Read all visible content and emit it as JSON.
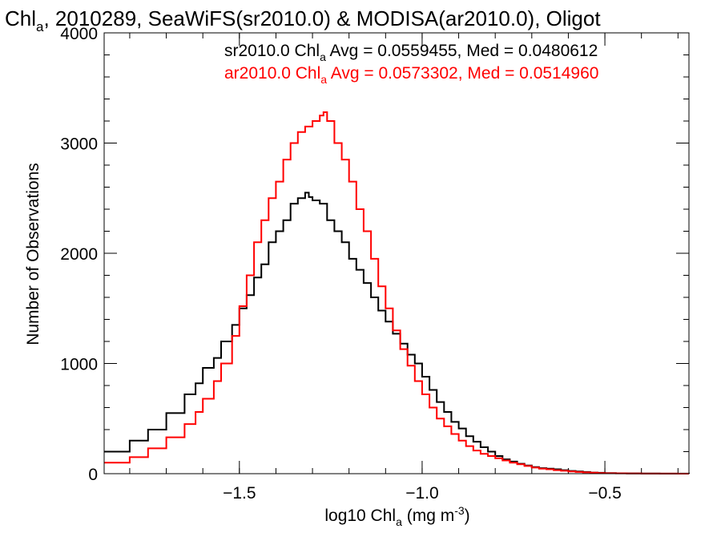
{
  "chart_data": {
    "type": "line",
    "title": {
      "prefix": "Chl",
      "sub": "a",
      "rest": ", 2010289, SeaWiFS(sr2010.0) & MODISA(ar2010.0), Oligot"
    },
    "xlabel": {
      "prefix": "log10 Chl",
      "sub": "a",
      "mid": " (mg m",
      "sup": "-3",
      "suffix": ")"
    },
    "ylabel": "Number of Observations",
    "xlim": [
      -1.87,
      -0.27
    ],
    "ylim": [
      0,
      4000
    ],
    "x_ticks": [
      {
        "value": -1.5,
        "label": "−1.5"
      },
      {
        "value": -1.0,
        "label": "−1.0"
      },
      {
        "value": -0.5,
        "label": "−0.5"
      }
    ],
    "y_ticks": [
      {
        "value": 0,
        "label": "0"
      },
      {
        "value": 1000,
        "label": "1000"
      },
      {
        "value": 2000,
        "label": "2000"
      },
      {
        "value": 3000,
        "label": "3000"
      },
      {
        "value": 4000,
        "label": "4000"
      }
    ],
    "x_minor_step": 0.1,
    "y_minor_step": 200,
    "grid": false,
    "legend_position": "top-right",
    "series": [
      {
        "legend_prefix": "sr2010.0 Chl",
        "legend_sub": "a",
        "legend_rest": " Avg = 0.0559455, Med = 0.0480612",
        "color": "#000000",
        "x": [
          -1.87,
          -1.8,
          -1.75,
          -1.7,
          -1.65,
          -1.62,
          -1.6,
          -1.57,
          -1.55,
          -1.52,
          -1.5,
          -1.48,
          -1.46,
          -1.44,
          -1.42,
          -1.4,
          -1.38,
          -1.36,
          -1.34,
          -1.32,
          -1.31,
          -1.3,
          -1.28,
          -1.26,
          -1.24,
          -1.22,
          -1.2,
          -1.18,
          -1.16,
          -1.14,
          -1.12,
          -1.1,
          -1.08,
          -1.06,
          -1.04,
          -1.02,
          -1.0,
          -0.98,
          -0.96,
          -0.94,
          -0.92,
          -0.9,
          -0.88,
          -0.86,
          -0.84,
          -0.82,
          -0.8,
          -0.78,
          -0.76,
          -0.74,
          -0.72,
          -0.7,
          -0.68,
          -0.66,
          -0.64,
          -0.62,
          -0.6,
          -0.58,
          -0.56,
          -0.54,
          -0.52,
          -0.5,
          -0.47,
          -0.44,
          -0.4,
          -0.35,
          -0.3,
          -0.27
        ],
        "y": [
          200,
          300,
          400,
          550,
          720,
          820,
          960,
          1050,
          1200,
          1350,
          1500,
          1620,
          1780,
          1900,
          2100,
          2200,
          2300,
          2450,
          2500,
          2550,
          2510,
          2480,
          2450,
          2300,
          2200,
          2100,
          1950,
          1850,
          1730,
          1600,
          1480,
          1380,
          1270,
          1180,
          1080,
          1000,
          880,
          760,
          650,
          560,
          470,
          410,
          340,
          290,
          240,
          200,
          160,
          130,
          110,
          90,
          75,
          60,
          50,
          45,
          40,
          32,
          25,
          20,
          15,
          10,
          8,
          6,
          4,
          3,
          2,
          1,
          1,
          0
        ]
      },
      {
        "legend_prefix": "ar2010.0 Chl",
        "legend_sub": "a",
        "legend_rest": " Avg = 0.0573302, Med = 0.0514960",
        "color": "#ff0000",
        "x": [
          -1.87,
          -1.8,
          -1.75,
          -1.7,
          -1.65,
          -1.62,
          -1.6,
          -1.57,
          -1.55,
          -1.52,
          -1.5,
          -1.48,
          -1.46,
          -1.44,
          -1.42,
          -1.4,
          -1.38,
          -1.36,
          -1.34,
          -1.32,
          -1.3,
          -1.28,
          -1.27,
          -1.26,
          -1.24,
          -1.22,
          -1.2,
          -1.18,
          -1.16,
          -1.14,
          -1.12,
          -1.1,
          -1.08,
          -1.06,
          -1.04,
          -1.02,
          -1.0,
          -0.98,
          -0.96,
          -0.94,
          -0.92,
          -0.9,
          -0.88,
          -0.86,
          -0.84,
          -0.82,
          -0.8,
          -0.78,
          -0.76,
          -0.74,
          -0.72,
          -0.7,
          -0.68,
          -0.66,
          -0.64,
          -0.62,
          -0.6,
          -0.58,
          -0.56,
          -0.54,
          -0.52,
          -0.5,
          -0.47,
          -0.44,
          -0.4,
          -0.35,
          -0.3,
          -0.27
        ],
        "y": [
          100,
          150,
          230,
          330,
          450,
          560,
          680,
          840,
          1000,
          1250,
          1520,
          1800,
          2100,
          2300,
          2500,
          2650,
          2850,
          3000,
          3100,
          3150,
          3200,
          3250,
          3280,
          3200,
          3000,
          2850,
          2650,
          2400,
          2200,
          1950,
          1700,
          1500,
          1300,
          1130,
          980,
          840,
          720,
          600,
          500,
          430,
          360,
          300,
          250,
          210,
          180,
          160,
          140,
          120,
          100,
          85,
          70,
          55,
          45,
          40,
          32,
          26,
          20,
          15,
          12,
          9,
          6,
          4,
          3,
          2,
          1,
          1,
          0,
          0
        ]
      }
    ]
  }
}
